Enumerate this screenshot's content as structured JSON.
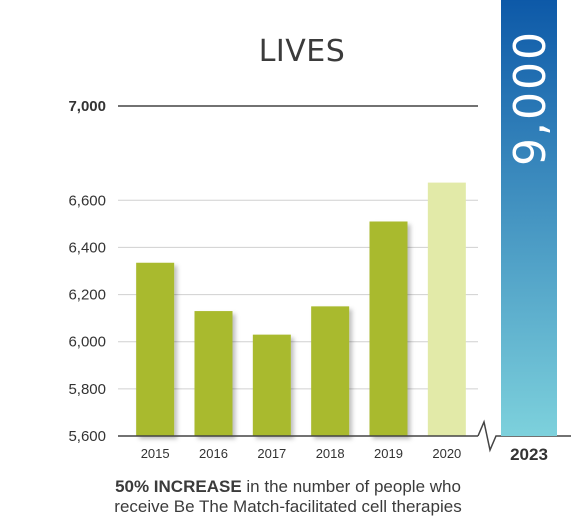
{
  "chart_data": {
    "type": "bar",
    "title": "LIVES",
    "categories": [
      "2015",
      "2016",
      "2017",
      "2018",
      "2019",
      "2020"
    ],
    "values": [
      6335,
      6130,
      6030,
      6150,
      6510,
      6675
    ],
    "ylim": [
      5600,
      7000
    ],
    "yticks": [
      "5,600",
      "5,800",
      "6,000",
      "6,200",
      "6,400",
      "6,600",
      "7,000"
    ],
    "ytick_values": [
      5600,
      5800,
      6000,
      6200,
      6400,
      6600,
      7000
    ],
    "projection": {
      "label": "2023",
      "value_label": "9,000",
      "value": 9000
    },
    "colors": {
      "bar": "#a9ba2e",
      "bar_last": "#e2eaa8",
      "tall_top": "#0d59a8",
      "tall_bottom": "#7dd1dc",
      "axis": "#444444",
      "grid": "#d0d0d0"
    }
  },
  "caption": {
    "bold": "50% INCREASE",
    "line1": " in the number of people who",
    "line2": "receive Be The Match-facilitated cell therapies"
  }
}
